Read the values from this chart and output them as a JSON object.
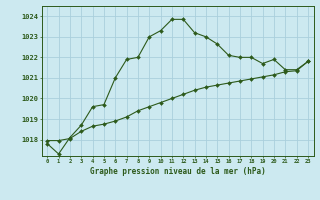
{
  "title": "Graphe pression niveau de la mer (hPa)",
  "bg_color": "#cce9f0",
  "grid_color": "#aacfdc",
  "line_color": "#2d5a1b",
  "x_ticks": [
    0,
    1,
    2,
    3,
    4,
    5,
    6,
    7,
    8,
    9,
    10,
    11,
    12,
    13,
    14,
    15,
    16,
    17,
    18,
    19,
    20,
    21,
    22,
    23
  ],
  "ylim": [
    1017.2,
    1024.5
  ],
  "yticks": [
    1018,
    1019,
    1020,
    1021,
    1022,
    1023,
    1024
  ],
  "series1": [
    1017.8,
    1017.3,
    1018.1,
    1018.7,
    1019.6,
    1019.7,
    1021.0,
    1021.9,
    1022.0,
    1023.0,
    1023.3,
    1023.85,
    1023.85,
    1023.2,
    1023.0,
    1022.65,
    1022.1,
    1022.0,
    1022.0,
    1021.7,
    1021.9,
    1021.4,
    1021.4,
    1021.8
  ],
  "series2": [
    1017.95,
    1017.95,
    1018.05,
    1018.4,
    1018.65,
    1018.75,
    1018.9,
    1019.1,
    1019.4,
    1019.6,
    1019.8,
    1020.0,
    1020.2,
    1020.4,
    1020.55,
    1020.65,
    1020.75,
    1020.85,
    1020.95,
    1021.05,
    1021.15,
    1021.3,
    1021.35,
    1021.8
  ]
}
